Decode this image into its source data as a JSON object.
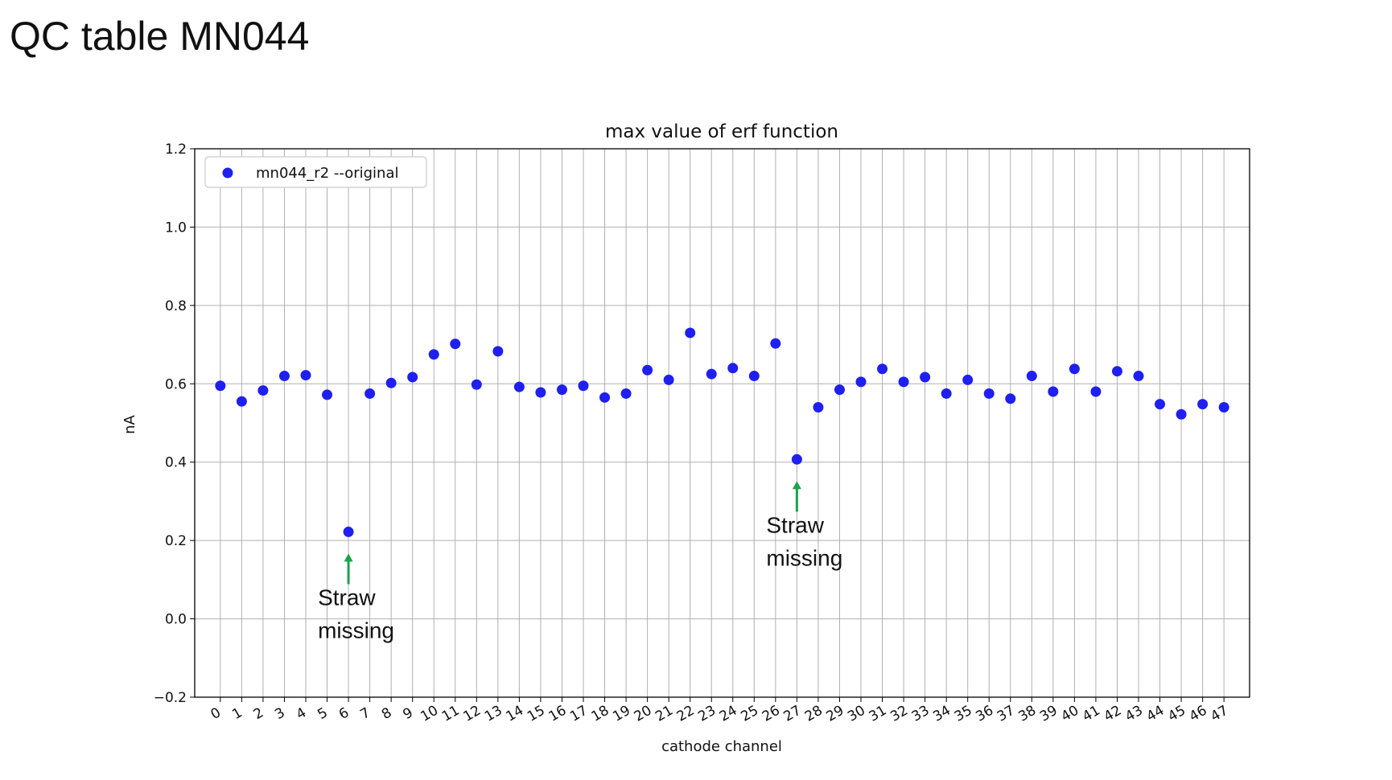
{
  "slide": {
    "title": "QC table MN044"
  },
  "chart_data": {
    "type": "scatter",
    "title": "max value of erf function",
    "xlabel": "cathode channel",
    "ylabel": "nA",
    "ylim": [
      -0.2,
      1.2
    ],
    "xlim": [
      -1.2,
      48.2
    ],
    "yticks": [
      -0.2,
      0.0,
      0.2,
      0.4,
      0.6,
      0.8,
      1.0,
      1.2
    ],
    "ytick_labels": [
      "−0.2",
      "0.0",
      "0.2",
      "0.4",
      "0.6",
      "0.8",
      "1.0",
      "1.2"
    ],
    "x": [
      0,
      1,
      2,
      3,
      4,
      5,
      6,
      7,
      8,
      9,
      10,
      11,
      12,
      13,
      14,
      15,
      16,
      17,
      18,
      19,
      20,
      21,
      22,
      23,
      24,
      25,
      26,
      27,
      28,
      29,
      30,
      31,
      32,
      33,
      34,
      35,
      36,
      37,
      38,
      39,
      40,
      41,
      42,
      43,
      44,
      45,
      46,
      47
    ],
    "series": [
      {
        "name": "mn044_r2 --original",
        "color": "#1f1ff0",
        "values": [
          0.595,
          0.555,
          0.583,
          0.62,
          0.622,
          0.572,
          0.222,
          0.575,
          0.602,
          0.617,
          0.675,
          0.702,
          0.598,
          0.683,
          0.592,
          0.578,
          0.585,
          0.595,
          0.565,
          0.575,
          0.635,
          0.61,
          0.73,
          0.625,
          0.64,
          0.62,
          0.703,
          0.407,
          0.54,
          0.585,
          0.605,
          0.638,
          0.605,
          0.617,
          0.575,
          0.61,
          0.575,
          0.562,
          0.62,
          0.58,
          0.638,
          0.58,
          0.632,
          0.62,
          0.548,
          0.522,
          0.548,
          0.54
        ]
      }
    ],
    "grid": true,
    "legend_position": "top-left",
    "annotations": [
      {
        "channel": 6,
        "text_line1": "Straw",
        "text_line2": "missing",
        "arrow_color": "#1aa34a"
      },
      {
        "channel": 27,
        "text_line1": "Straw",
        "text_line2": "missing",
        "arrow_color": "#1aa34a"
      }
    ]
  }
}
